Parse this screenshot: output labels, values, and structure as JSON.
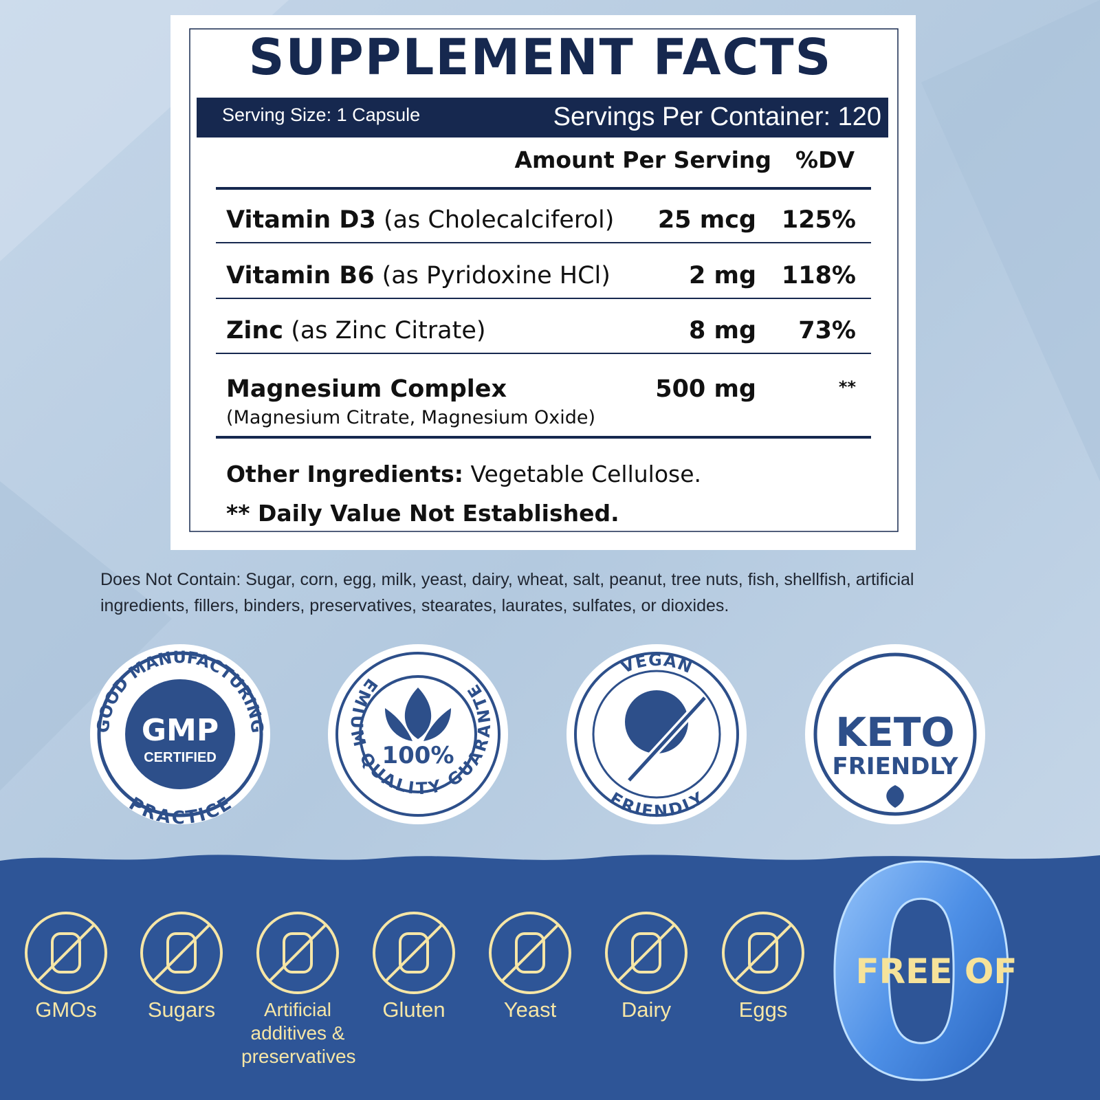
{
  "label": {
    "title": "SUPPLEMENT FACTS",
    "serving_size": "Serving Size: 1 Capsule",
    "servings_per_container": "Servings Per Container: 120",
    "columns": [
      "Amount Per Serving",
      "%DV"
    ],
    "rows": [
      {
        "name": "Vitamin D3",
        "detail": "(as Cholecalciferol)",
        "amount": "25 mcg",
        "dv": "125%"
      },
      {
        "name": "Vitamin B6",
        "detail": "(as Pyridoxine HCl)",
        "amount": "2 mg",
        "dv": "118%"
      },
      {
        "name": "Zinc",
        "detail": "(as Zinc Citrate)",
        "amount": "8 mg",
        "dv": "73%"
      },
      {
        "name": "Magnesium Complex",
        "sub": "(Magnesium Citrate, Magnesium Oxide)",
        "amount": "500 mg",
        "dv": "**"
      }
    ],
    "other_ingredients": {
      "label": "Other Ingredients:",
      "text": "Vegetable Cellulose."
    },
    "footnote": "** Daily Value Not Established."
  },
  "does_not_contain": {
    "label": "Does Not Contain:",
    "text": "Sugar, corn, egg, milk, yeast, dairy, wheat, salt, peanut, tree nuts, fish, shellfish, artificial ingredients, fillers, binders, preservatives, stearates, laurates, sulfates, or dioxides."
  },
  "badges": [
    {
      "ring_top": "GOOD MANUFACTURING",
      "ring_bottom": "PRACTICE",
      "center": "GMP",
      "sub": "CERTIFIED"
    },
    {
      "ring_top": "PREMIUM QUALITY GUARANTEED",
      "center": "100%"
    },
    {
      "ring_top": "VEGAN",
      "ring_bottom": "FRIENDLY"
    },
    {
      "center": "KETO",
      "sub": "FRIENDLY"
    }
  ],
  "free_of": {
    "title": "FREE OF",
    "digit": "0",
    "items": [
      "GMOs",
      "Sugars",
      "Artificial additives & preservatives",
      "Gluten",
      "Yeast",
      "Dairy",
      "Eggs"
    ]
  }
}
